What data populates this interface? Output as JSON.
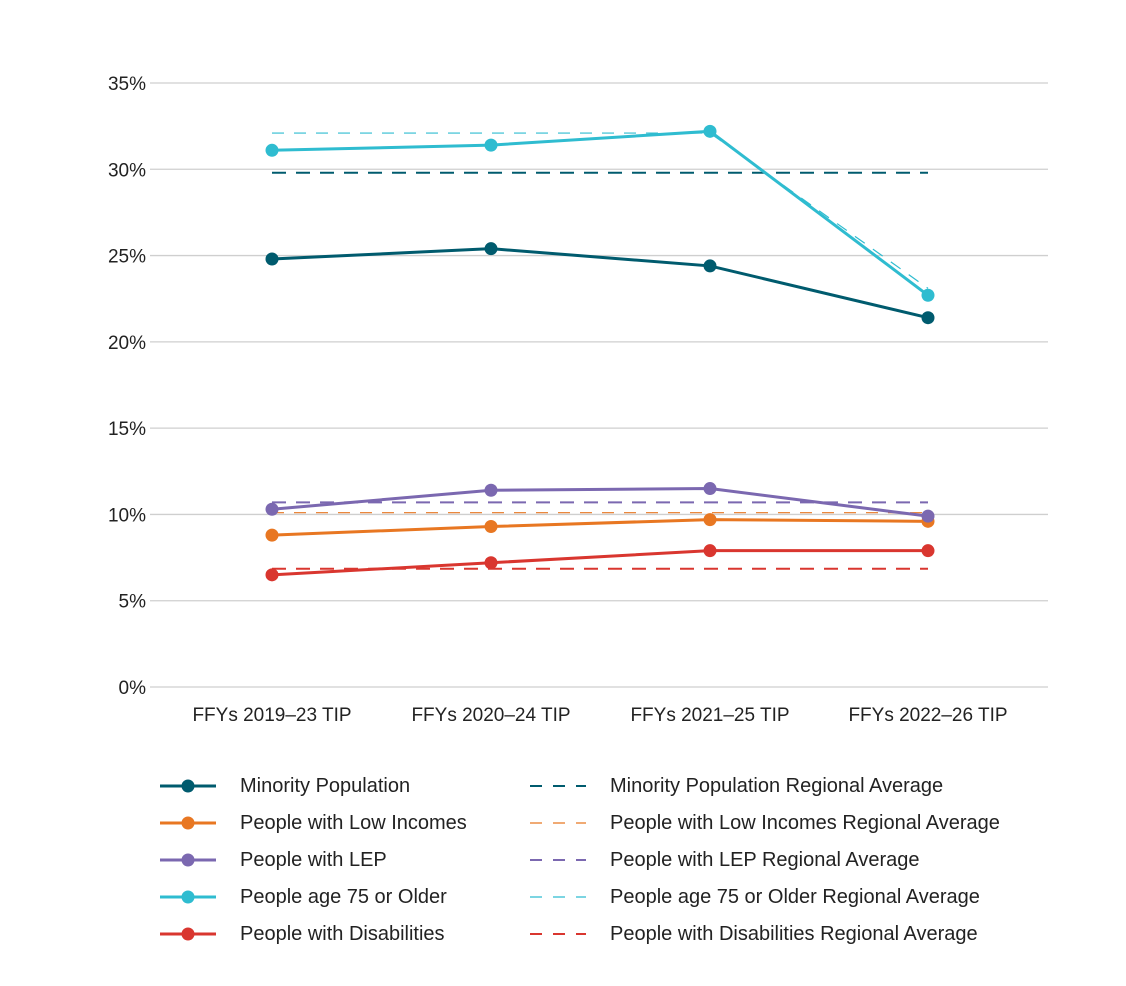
{
  "chart_data": {
    "type": "line",
    "categories": [
      "FFYs 2019–23 TIP",
      "FFYs 2020–24 TIP",
      "FFYs 2021–25 TIP",
      "FFYs 2022–26 TIP"
    ],
    "ylim": [
      0,
      35
    ],
    "yticks": [
      0,
      5,
      10,
      15,
      20,
      25,
      30,
      35
    ],
    "ytick_labels": [
      "0%",
      "5%",
      "10%",
      "15%",
      "20%",
      "25%",
      "30%",
      "35%"
    ],
    "grid": true,
    "legend_position": "bottom",
    "series": [
      {
        "name": "Minority Population",
        "color": "#005b6e",
        "style": "solid",
        "values": [
          24.8,
          25.4,
          24.4,
          21.4
        ]
      },
      {
        "name": "People with Low Incomes",
        "color": "#e87722",
        "style": "solid",
        "values": [
          8.8,
          9.3,
          9.7,
          9.6
        ]
      },
      {
        "name": "People with LEP",
        "color": "#7b68b0",
        "style": "solid",
        "values": [
          10.3,
          11.4,
          11.5,
          9.9
        ]
      },
      {
        "name": "People age 75 or Older",
        "color": "#2fbcd0",
        "style": "solid",
        "values": [
          31.1,
          31.4,
          32.2,
          22.7
        ]
      },
      {
        "name": "People with Disabilities",
        "color": "#d9362f",
        "style": "solid",
        "values": [
          6.5,
          7.2,
          7.9,
          7.9
        ]
      },
      {
        "name": "Minority Population Regional Average",
        "color": "#005b6e",
        "style": "dashed",
        "values": [
          29.8,
          29.8,
          29.8,
          29.8
        ]
      },
      {
        "name": "People with Low Incomes Regional Average",
        "color": "#e87722",
        "style": "dashed-thin",
        "values": [
          10.1,
          10.1,
          10.1,
          10.1
        ]
      },
      {
        "name": "People with LEP Regional Average",
        "color": "#7b68b0",
        "style": "dashed",
        "values": [
          10.7,
          10.7,
          10.7,
          10.7
        ]
      },
      {
        "name": "People age 75 or Older Regional Average",
        "color": "#2fbcd0",
        "style": "dashed-thin",
        "values": [
          32.1,
          32.1,
          32.1,
          23.1
        ]
      },
      {
        "name": "People with Disabilities Regional Average",
        "color": "#d9362f",
        "style": "dashed",
        "values": [
          6.85,
          6.85,
          6.85,
          6.85
        ]
      }
    ]
  }
}
